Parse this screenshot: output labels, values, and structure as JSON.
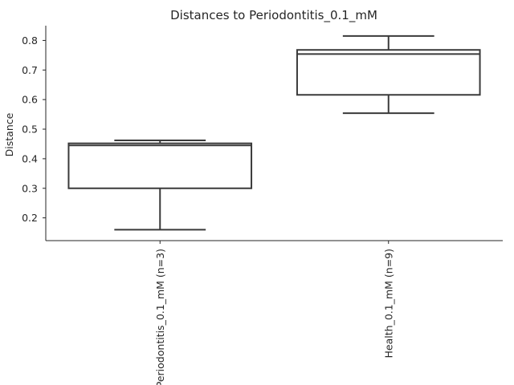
{
  "chart_data": {
    "type": "box",
    "title": "Distances to Periodontitis_0.1_mM",
    "xlabel": "",
    "ylabel": "Distance",
    "ylim": [
      0.123,
      0.85
    ],
    "yticks": [
      0.2,
      0.3,
      0.4,
      0.5,
      0.6,
      0.7,
      0.8
    ],
    "categories": [
      "Periodontitis_0.1_mM (n=3)",
      "Health_0.1_mM (n=9)"
    ],
    "boxes": [
      {
        "whisker_low": 0.16,
        "q1": 0.3,
        "median": 0.445,
        "q3": 0.452,
        "whisker_high": 0.462
      },
      {
        "whisker_low": 0.554,
        "q1": 0.616,
        "median": 0.754,
        "q3": 0.768,
        "whisker_high": 0.815
      }
    ],
    "grid": false,
    "colors": {
      "box_edge": "#3a3a3a",
      "box_fill": "#ffffff",
      "axis": "#262626"
    }
  }
}
